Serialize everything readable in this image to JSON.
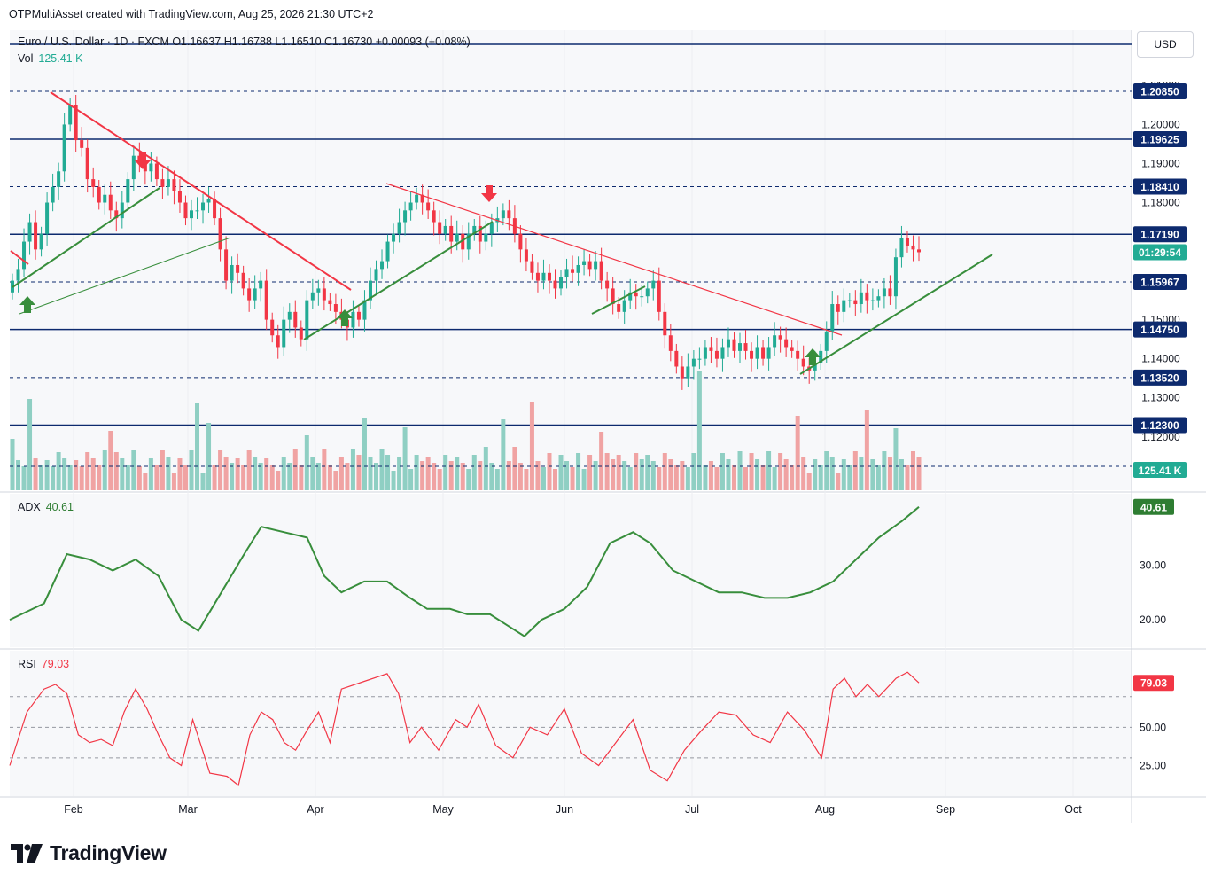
{
  "header": {
    "text": "OTPMultiAsset created with TradingView.com, Aug 25, 2026 21:30 UTC+2"
  },
  "symbol_line": {
    "text": "Euro / U.S. Dollar · 1D · FXCM  O1.16637  H1.16788  L1.16510  C1.16730  +0.00093 (+0.08%)"
  },
  "currency": "USD",
  "vol": {
    "label": "Vol",
    "value": "125.41 K",
    "badge": "125.41 K"
  },
  "adx": {
    "label": "ADX",
    "value": "40.61",
    "badge": "40.61",
    "color": "#2e7d32"
  },
  "rsi": {
    "label": "RSI",
    "value": "79.03",
    "badge": "79.03",
    "color": "#f23645"
  },
  "countdown": "01:29:54",
  "logo": {
    "text": "TradingView"
  },
  "colors": {
    "up": "#22ab94",
    "down": "#f23645",
    "vol_up": "#8fcfc3",
    "vol_down": "#f0a3a3",
    "level": "#0d2a6e",
    "trend_green": "#388e3c",
    "trend_red": "#f23645"
  },
  "chart_data": [
    {
      "type": "candlestick",
      "title": "Euro / U.S. Dollar · 1D · FXCM",
      "ylim": [
        1.11,
        1.22
      ],
      "x_labels": [
        "Feb",
        "Mar",
        "Apr",
        "May",
        "Jun",
        "Jul",
        "Aug",
        "Sep",
        "Oct"
      ],
      "price_ticks": [
        "1.21000",
        "1.20000",
        "1.19000",
        "1.18000",
        "1.15000",
        "1.14000",
        "1.13000",
        "1.12000"
      ],
      "levels": [
        {
          "value": 1.2085,
          "label": "1.20850",
          "style": "dashed"
        },
        {
          "value": 1.19625,
          "label": "1.19625",
          "style": "solid"
        },
        {
          "value": 1.1841,
          "label": "1.18410",
          "style": "dashed"
        },
        {
          "value": 1.1719,
          "label": "1.17190",
          "style": "solid"
        },
        {
          "value": 1.15967,
          "label": "1.15967",
          "style": "dashed"
        },
        {
          "value": 1.1475,
          "label": "1.14750",
          "style": "solid"
        },
        {
          "value": 1.1352,
          "label": "1.13520",
          "style": "dashed"
        },
        {
          "value": 1.123,
          "label": "1.12300",
          "style": "solid"
        }
      ],
      "close_path": [
        1.16,
        1.163,
        1.17,
        1.175,
        1.168,
        1.172,
        1.18,
        1.184,
        1.188,
        1.2,
        1.205,
        1.196,
        1.194,
        1.186,
        1.184,
        1.18,
        1.182,
        1.178,
        1.176,
        1.18,
        1.186,
        1.192,
        1.19,
        1.188,
        1.19,
        1.186,
        1.184,
        1.186,
        1.183,
        1.18,
        1.176,
        1.178,
        1.178,
        1.18,
        1.181,
        1.176,
        1.168,
        1.16,
        1.164,
        1.162,
        1.158,
        1.155,
        1.158,
        1.16,
        1.15,
        1.146,
        1.143,
        1.15,
        1.152,
        1.148,
        1.145,
        1.155,
        1.157,
        1.158,
        1.155,
        1.154,
        1.152,
        1.15,
        1.148,
        1.152,
        1.15,
        1.155,
        1.16,
        1.163,
        1.165,
        1.17,
        1.172,
        1.175,
        1.178,
        1.18,
        1.182,
        1.18,
        1.178,
        1.175,
        1.172,
        1.174,
        1.17,
        1.172,
        1.168,
        1.172,
        1.174,
        1.17,
        1.172,
        1.175,
        1.176,
        1.178,
        1.176,
        1.172,
        1.168,
        1.165,
        1.162,
        1.16,
        1.162,
        1.16,
        1.158,
        1.161,
        1.163,
        1.162,
        1.164,
        1.165,
        1.163,
        1.165,
        1.16,
        1.158,
        1.154,
        1.152,
        1.155,
        1.157,
        1.156,
        1.156,
        1.158,
        1.16,
        1.152,
        1.146,
        1.142,
        1.138,
        1.135,
        1.138,
        1.14,
        1.14,
        1.143,
        1.142,
        1.14,
        1.143,
        1.145,
        1.142,
        1.144,
        1.142,
        1.14,
        1.143,
        1.14,
        1.143,
        1.146,
        1.145,
        1.143,
        1.142,
        1.14,
        1.138,
        1.137,
        1.139,
        1.142,
        1.147,
        1.154,
        1.152,
        1.155,
        1.155,
        1.154,
        1.157,
        1.155,
        1.155,
        1.156,
        1.158,
        1.156,
        1.166,
        1.171,
        1.169,
        1.168,
        1.1673
      ],
      "volume_last": "125.41 K"
    },
    {
      "type": "line",
      "title": "ADX",
      "value": 40.61,
      "ticks": [
        "30.00",
        "20.00"
      ],
      "ylim": [
        15,
        43
      ],
      "points": [
        [
          0,
          20
        ],
        [
          6,
          23
        ],
        [
          10,
          32
        ],
        [
          14,
          31
        ],
        [
          18,
          29
        ],
        [
          22,
          31
        ],
        [
          26,
          28
        ],
        [
          30,
          20
        ],
        [
          33,
          18
        ],
        [
          37,
          25
        ],
        [
          41,
          32
        ],
        [
          44,
          37
        ],
        [
          48,
          36
        ],
        [
          52,
          35
        ],
        [
          55,
          28
        ],
        [
          58,
          25
        ],
        [
          62,
          27
        ],
        [
          66,
          27
        ],
        [
          70,
          24
        ],
        [
          73,
          22
        ],
        [
          77,
          22
        ],
        [
          80,
          21
        ],
        [
          84,
          21
        ],
        [
          87,
          19
        ],
        [
          90,
          17
        ],
        [
          93,
          20
        ],
        [
          97,
          22
        ],
        [
          101,
          26
        ],
        [
          105,
          34
        ],
        [
          109,
          36
        ],
        [
          112,
          34
        ],
        [
          116,
          29
        ],
        [
          120,
          27
        ],
        [
          124,
          25
        ],
        [
          128,
          25
        ],
        [
          132,
          24
        ],
        [
          136,
          24
        ],
        [
          140,
          25
        ],
        [
          144,
          27
        ],
        [
          148,
          31
        ],
        [
          152,
          35
        ],
        [
          156,
          38
        ],
        [
          159,
          40.61
        ]
      ]
    },
    {
      "type": "line",
      "title": "RSI",
      "value": 79.03,
      "ticks": [
        "50.00",
        "25.00"
      ],
      "ylim": [
        5,
        100
      ],
      "bands": [
        70,
        30
      ],
      "points": [
        [
          0,
          25
        ],
        [
          3,
          60
        ],
        [
          6,
          75
        ],
        [
          8,
          78
        ],
        [
          10,
          72
        ],
        [
          12,
          45
        ],
        [
          14,
          40
        ],
        [
          16,
          42
        ],
        [
          18,
          38
        ],
        [
          20,
          60
        ],
        [
          22,
          75
        ],
        [
          24,
          62
        ],
        [
          26,
          45
        ],
        [
          28,
          30
        ],
        [
          30,
          25
        ],
        [
          32,
          55
        ],
        [
          35,
          20
        ],
        [
          38,
          18
        ],
        [
          40,
          12
        ],
        [
          42,
          45
        ],
        [
          44,
          60
        ],
        [
          46,
          55
        ],
        [
          48,
          40
        ],
        [
          50,
          35
        ],
        [
          52,
          48
        ],
        [
          54,
          60
        ],
        [
          56,
          40
        ],
        [
          58,
          75
        ],
        [
          62,
          80
        ],
        [
          66,
          85
        ],
        [
          68,
          72
        ],
        [
          70,
          40
        ],
        [
          72,
          50
        ],
        [
          75,
          35
        ],
        [
          78,
          55
        ],
        [
          80,
          50
        ],
        [
          82,
          65
        ],
        [
          85,
          38
        ],
        [
          88,
          30
        ],
        [
          91,
          50
        ],
        [
          94,
          45
        ],
        [
          97,
          62
        ],
        [
          100,
          33
        ],
        [
          103,
          25
        ],
        [
          106,
          40
        ],
        [
          109,
          55
        ],
        [
          112,
          22
        ],
        [
          115,
          15
        ],
        [
          118,
          35
        ],
        [
          121,
          48
        ],
        [
          124,
          60
        ],
        [
          127,
          58
        ],
        [
          130,
          45
        ],
        [
          133,
          40
        ],
        [
          136,
          60
        ],
        [
          139,
          48
        ],
        [
          142,
          30
        ],
        [
          144,
          75
        ],
        [
          146,
          82
        ],
        [
          148,
          70
        ],
        [
          150,
          78
        ],
        [
          152,
          70
        ],
        [
          155,
          82
        ],
        [
          157,
          86
        ],
        [
          159,
          79.03
        ]
      ]
    }
  ]
}
